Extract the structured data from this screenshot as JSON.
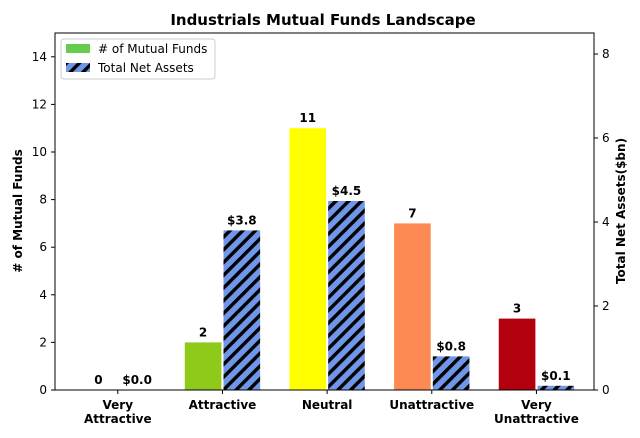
{
  "chart_data": {
    "type": "bar",
    "title": "Industrials Mutual Funds Landscape",
    "categories": [
      [
        "Very",
        "Attractive"
      ],
      [
        "Attractive"
      ],
      [
        "Neutral"
      ],
      [
        "Unattractive"
      ],
      [
        "Very",
        "Unattractive"
      ]
    ],
    "series": [
      {
        "name": "# of Mutual Funds",
        "axis": "left",
        "values": [
          0,
          2,
          11,
          7,
          3
        ],
        "labels": [
          "0",
          "2",
          "11",
          "7",
          "3"
        ],
        "colors": [
          "#8fc919",
          "#8fc919",
          "#ffff00",
          "#fd8a52",
          "#b3000f"
        ],
        "legend_color": "#66cc4c"
      },
      {
        "name": "Total Net Assets",
        "axis": "right",
        "values": [
          0.0,
          3.8,
          4.5,
          0.8,
          0.1
        ],
        "labels": [
          "$0.0",
          "$3.8",
          "$4.5",
          "$0.8",
          "$0.1"
        ],
        "color": "#6f96e8",
        "hatch": "black diagonal stripes"
      }
    ],
    "ylabel_left": "# of Mutual Funds",
    "ylabel_right": "Total Net Assets($bn)",
    "ylim_left": [
      0,
      15
    ],
    "yticks_left": [
      0,
      2,
      4,
      6,
      8,
      10,
      12,
      14
    ],
    "ylim_right": [
      0,
      8.5
    ],
    "yticks_right": [
      0,
      2,
      4,
      6,
      8
    ],
    "grid": false,
    "legend_position": "top-left"
  }
}
